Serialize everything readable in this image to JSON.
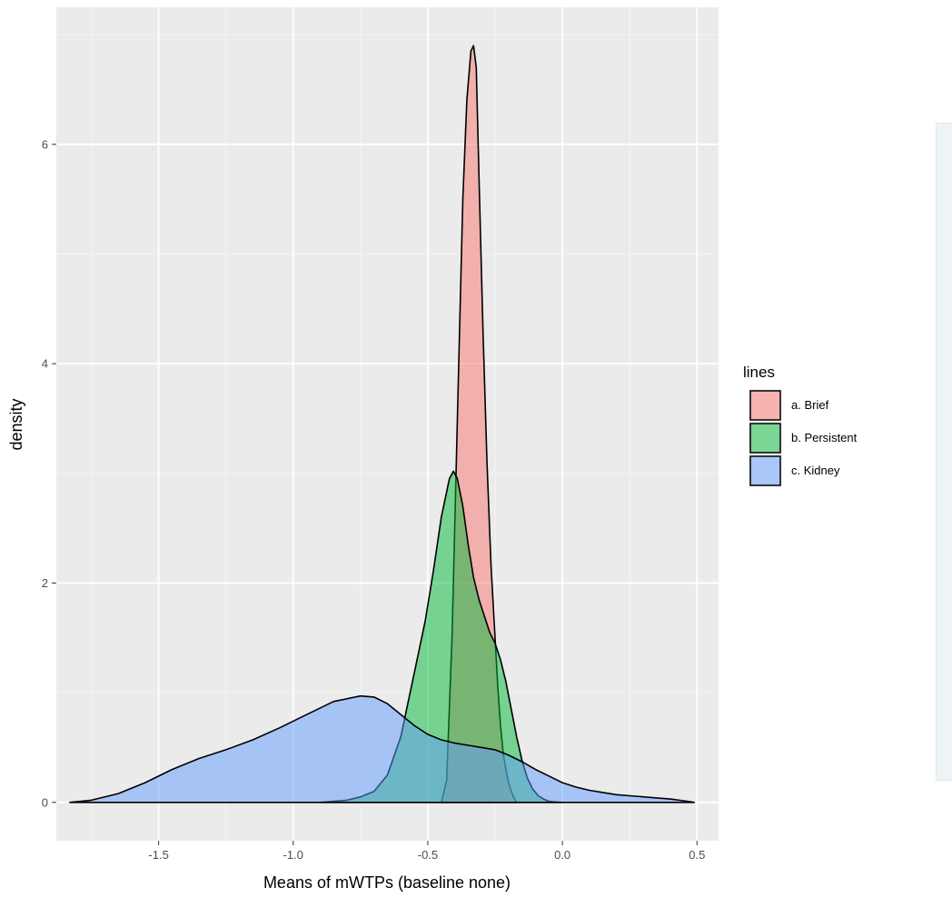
{
  "chart_data": {
    "type": "area",
    "xlabel": "Means of mWTPs (baseline none)",
    "ylabel": "density",
    "xlim": [
      -1.88,
      0.58
    ],
    "ylim": [
      -0.35,
      7.25
    ],
    "x_ticks": [
      -1.5,
      -1.0,
      -0.5,
      0.0,
      0.5
    ],
    "x_tick_labels": [
      "-1.5",
      "-1.0",
      "-0.5",
      "0.0",
      "0.5"
    ],
    "y_ticks": [
      0,
      2,
      4,
      6
    ],
    "y_tick_labels": [
      "0",
      "2",
      "4",
      "6"
    ],
    "grid": true,
    "legend": {
      "title": "lines",
      "placement": "right"
    },
    "series": [
      {
        "name": "a. Brief",
        "color": "#f8766d",
        "x": [
          -0.45,
          -0.43,
          -0.41,
          -0.39,
          -0.37,
          -0.355,
          -0.34,
          -0.33,
          -0.32,
          -0.31,
          -0.295,
          -0.28,
          -0.265,
          -0.25,
          -0.24,
          -0.23,
          -0.22,
          -0.21,
          -0.2,
          -0.19,
          -0.18,
          -0.17
        ],
        "y": [
          0.0,
          0.2,
          1.5,
          3.5,
          5.5,
          6.4,
          6.85,
          6.9,
          6.7,
          5.7,
          4.3,
          3.1,
          2.15,
          1.5,
          1.05,
          0.7,
          0.45,
          0.3,
          0.18,
          0.1,
          0.04,
          0.0
        ]
      },
      {
        "name": "b. Persistent",
        "color": "#00ba38",
        "x": [
          -0.9,
          -0.85,
          -0.8,
          -0.75,
          -0.7,
          -0.65,
          -0.6,
          -0.57,
          -0.54,
          -0.51,
          -0.48,
          -0.45,
          -0.42,
          -0.405,
          -0.39,
          -0.37,
          -0.35,
          -0.33,
          -0.31,
          -0.29,
          -0.27,
          -0.25,
          -0.23,
          -0.21,
          -0.19,
          -0.17,
          -0.15,
          -0.13,
          -0.11,
          -0.09,
          -0.07,
          -0.05,
          -0.03,
          0.0
        ],
        "y": [
          0.0,
          0.01,
          0.02,
          0.05,
          0.1,
          0.25,
          0.6,
          0.95,
          1.3,
          1.65,
          2.1,
          2.6,
          2.95,
          3.02,
          2.95,
          2.7,
          2.35,
          2.05,
          1.85,
          1.7,
          1.55,
          1.45,
          1.3,
          1.1,
          0.85,
          0.6,
          0.38,
          0.22,
          0.12,
          0.06,
          0.03,
          0.01,
          0.005,
          0.0
        ]
      },
      {
        "name": "c. Kidney",
        "color": "#619cff",
        "x": [
          -1.83,
          -1.75,
          -1.65,
          -1.55,
          -1.45,
          -1.35,
          -1.25,
          -1.15,
          -1.05,
          -0.95,
          -0.85,
          -0.75,
          -0.7,
          -0.65,
          -0.6,
          -0.55,
          -0.5,
          -0.45,
          -0.4,
          -0.35,
          -0.3,
          -0.25,
          -0.2,
          -0.15,
          -0.1,
          -0.05,
          0.0,
          0.05,
          0.1,
          0.15,
          0.2,
          0.25,
          0.3,
          0.35,
          0.4,
          0.45,
          0.49
        ],
        "y": [
          0.0,
          0.02,
          0.08,
          0.18,
          0.3,
          0.4,
          0.48,
          0.57,
          0.68,
          0.8,
          0.92,
          0.97,
          0.96,
          0.9,
          0.8,
          0.7,
          0.62,
          0.57,
          0.54,
          0.52,
          0.5,
          0.48,
          0.43,
          0.37,
          0.3,
          0.24,
          0.18,
          0.14,
          0.11,
          0.09,
          0.07,
          0.06,
          0.05,
          0.04,
          0.03,
          0.015,
          0.0
        ]
      }
    ]
  }
}
